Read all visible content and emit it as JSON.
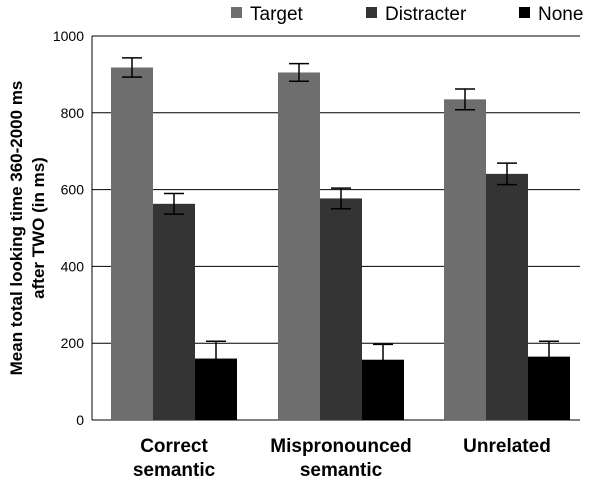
{
  "chart_data": {
    "type": "bar",
    "title": "",
    "ylabel_line1": "Mean total looking time  360-2000 ms",
    "ylabel_line2": "after TWO  (in ms)",
    "xlabel": "",
    "ylim": [
      0,
      1000
    ],
    "yticks": [
      0,
      200,
      400,
      600,
      800,
      1000
    ],
    "grid": true,
    "legend_position": "top",
    "categories": [
      {
        "line1": "Correct",
        "line2": "semantic"
      },
      {
        "line1": "Mispronounced",
        "line2": "semantic"
      },
      {
        "line1": "Unrelated",
        "line2": ""
      }
    ],
    "series": [
      {
        "name": "Target",
        "color": "#6e6e6e",
        "values": [
          918,
          905,
          835
        ],
        "errors": [
          25,
          23,
          27
        ]
      },
      {
        "name": "Distracter",
        "color": "#343434",
        "values": [
          563,
          577,
          641
        ],
        "errors": [
          27,
          27,
          28
        ]
      },
      {
        "name": "None",
        "color": "#000000",
        "values": [
          160,
          157,
          165
        ],
        "errors": [
          45,
          40,
          40
        ]
      }
    ]
  }
}
